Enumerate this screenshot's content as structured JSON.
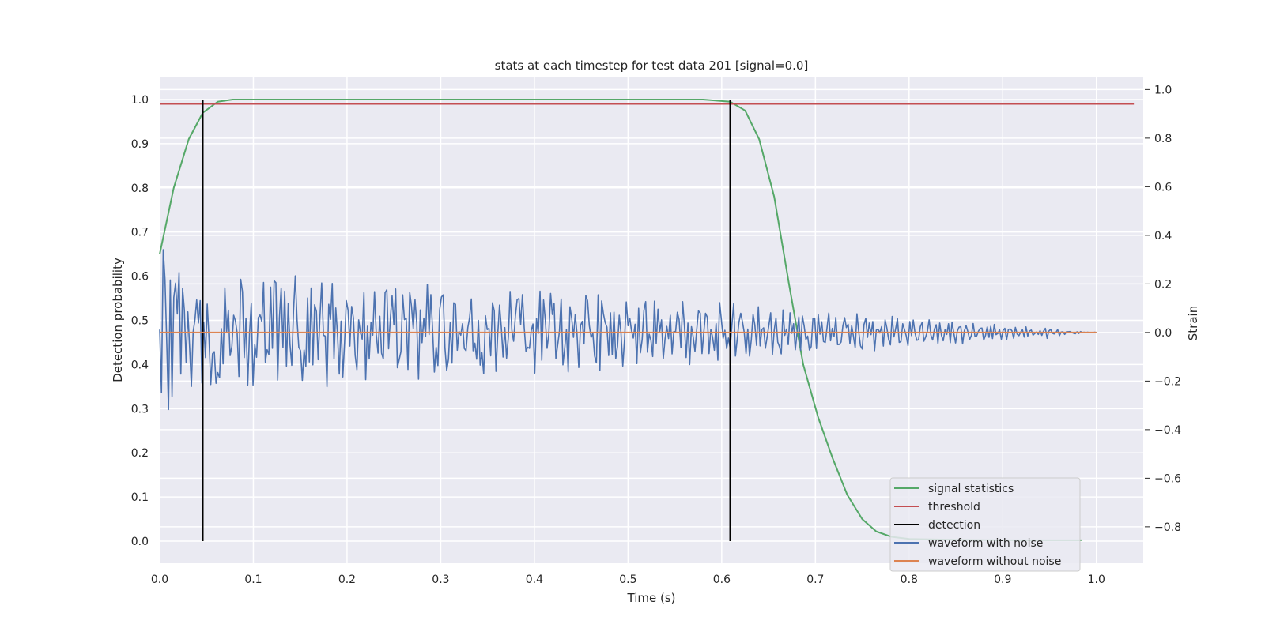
{
  "chart_data": {
    "type": "line",
    "title": "stats at each timestep for test data 201 [signal=0.0]",
    "xlabel": "Time (s)",
    "ylabel_left": "Detection probability",
    "ylabel_right": "Strain",
    "xlim": [
      0.0,
      1.05
    ],
    "ylim_left": [
      -0.05,
      1.05
    ],
    "ylim_right": [
      -0.95,
      1.05
    ],
    "x_ticks": [
      0.0,
      0.1,
      0.2,
      0.3,
      0.4,
      0.5,
      0.6,
      0.7,
      0.8,
      0.9,
      1.0
    ],
    "x_tick_labels": [
      "0.0",
      "0.1",
      "0.2",
      "0.3",
      "0.4",
      "0.5",
      "0.6",
      "0.7",
      "0.8",
      "0.9",
      "1.0"
    ],
    "y_left_ticks": [
      0.0,
      0.1,
      0.2,
      0.3,
      0.4,
      0.5,
      0.6,
      0.7,
      0.8,
      0.9,
      1.0
    ],
    "y_left_tick_labels": [
      "0.0",
      "0.1",
      "0.2",
      "0.3",
      "0.4",
      "0.5",
      "0.6",
      "0.7",
      "0.8",
      "0.9",
      "1.0"
    ],
    "y_right_ticks": [
      -0.8,
      -0.6,
      -0.4,
      -0.2,
      0.0,
      0.2,
      0.4,
      0.6,
      0.8,
      1.0
    ],
    "y_right_tick_labels": [
      "−0.8",
      "−0.6",
      "−0.4",
      "−0.2",
      "0.0",
      "0.2",
      "0.4",
      "0.6",
      "0.8",
      "1.0"
    ],
    "grid": true,
    "legend_position": "lower-right",
    "legend": [
      {
        "label": "signal statistics",
        "color": "#55a868"
      },
      {
        "label": "threshold",
        "color": "#c44e52"
      },
      {
        "label": "detection",
        "color": "#000000"
      },
      {
        "label": "waveform with noise",
        "color": "#4c72b0"
      },
      {
        "label": "waveform without noise",
        "color": "#dd8452"
      }
    ],
    "series": [
      {
        "name": "signal statistics",
        "axis": "left",
        "color": "#55a868",
        "x": [
          0.0,
          0.015,
          0.031,
          0.046,
          0.062,
          0.078,
          0.1,
          0.2,
          0.3,
          0.4,
          0.5,
          0.58,
          0.609,
          0.625,
          0.64,
          0.656,
          0.672,
          0.687,
          0.703,
          0.718,
          0.734,
          0.75,
          0.765,
          0.781,
          0.8,
          0.85,
          0.9,
          0.95,
          0.984
        ],
        "y": [
          0.65,
          0.8,
          0.91,
          0.97,
          0.995,
          1.0,
          1.0,
          1.0,
          1.0,
          1.0,
          1.0,
          1.0,
          0.995,
          0.975,
          0.91,
          0.78,
          0.58,
          0.4,
          0.28,
          0.19,
          0.105,
          0.05,
          0.022,
          0.01,
          0.005,
          0.003,
          0.002,
          0.002,
          0.002
        ]
      },
      {
        "name": "threshold",
        "axis": "left",
        "color": "#c44e52",
        "x": [
          0.0,
          1.04
        ],
        "y": [
          0.99,
          0.99
        ]
      },
      {
        "name": "waveform without noise",
        "axis": "right",
        "color": "#dd8452",
        "x": [
          0.0,
          1.0
        ],
        "y": [
          0.0,
          0.0
        ]
      }
    ],
    "detections": {
      "name": "detection",
      "color": "#000000",
      "x": [
        0.046,
        0.609
      ],
      "y_range": [
        0.0,
        1.0
      ]
    },
    "noisy_waveform": {
      "name": "waveform with noise",
      "axis": "right",
      "color": "#4c72b0",
      "x_start": 0.0,
      "x_end": 1.0,
      "y": [
        0.012,
        -0.248,
        0.341,
        0.218,
        -0.042,
        -0.317,
        0.216,
        -0.263,
        0.144,
        0.203,
        0.076,
        0.247,
        -0.171,
        0.181,
        0.093,
        -0.122,
        0.085,
        -0.062,
        -0.222,
        0.003,
        0.051,
        0.134,
        0.039,
        0.131,
        -0.208,
        0.041,
        -0.103,
        0.117,
        -0.024,
        -0.214,
        -0.088,
        -0.079,
        -0.209,
        -0.165,
        -0.186,
        0.016,
        -0.129,
        0.184,
        0.003,
        0.092,
        -0.095,
        -0.057,
        0.071,
        0.048,
        -0.003,
        -0.181,
        0.219,
        0.168,
        -0.103,
        0.059,
        -0.216,
        -0.006,
        0.119,
        -0.216,
        -0.05,
        -0.102,
        0.061,
        0.072,
        0.045,
        0.206,
        -0.122,
        -0.071,
        -0.09,
        0.187,
        -0.065,
        0.213,
        0.205,
        -0.196,
        0.061,
        0.183,
        -0.061,
        0.17,
        -0.138,
        0.12,
        -0.049,
        -0.135,
        0.088,
        0.233,
        0.054,
        -0.061,
        -0.075,
        -0.197,
        -0.072,
        -0.139,
        0.142,
        -0.121,
        0.183,
        -0.133,
        0.114,
        0.087,
        -0.112,
        0.062,
        0.204,
        -0.011,
        -0.015,
        -0.223,
        0.116,
        0.054,
        0.202,
        -0.109,
        0.101,
        -0.011,
        -0.171,
        0.047,
        -0.183,
        -0.041,
        0.131,
        0.091,
        -0.056,
        0.107,
        0.061,
        -0.093,
        -0.153,
        0.052,
        -0.001,
        -0.027,
        0.164,
        -0.194,
        0.026,
        -0.109,
        0.042,
        -0.011,
        0.168,
        -0.008,
        -0.085,
        0.067,
        -0.085,
        -0.109,
        0.164,
        0.176,
        -0.067,
        0.058,
        0.151,
        0.031,
        0.179,
        -0.145,
        -0.112,
        -0.079,
        0.155,
        0.053,
        0.058,
        -0.152,
        0.165,
        0.108,
        0.016,
        0.135,
        0.036,
        -0.192,
        0.093,
        -0.042,
        0.059,
        -0.017,
        0.198,
        -0.009,
        0.156,
        0.01,
        -0.163,
        -0.061,
        -0.136,
        0.093,
        0.146,
        0.155,
        -0.063,
        -0.157,
        -0.11,
        0.04,
        -0.126,
        0.122,
        0.116,
        -0.073,
        0.004,
        -0.011,
        0.036,
        -0.066,
        -0.075,
        0.02,
        0.061,
        0.138,
        -0.075,
        -0.044,
        -0.11,
        0.05,
        -0.134,
        -0.084,
        -0.17,
        0.069,
        0.012,
        0.017,
        -0.096,
        0.122,
        0.089,
        -0.16,
        -0.006,
        0.113,
        0.023,
        -0.101,
        0.02,
        -0.106,
        -0.02,
        0.169,
        0.009,
        -0.036,
        0.067,
        0.135,
        0.14,
        0.033,
        0.156,
        0.022,
        -0.077,
        -0.061,
        -0.065,
        0.008,
        0.035,
        -0.167,
        0.058,
        -0.004,
        0.17,
        -0.114,
        0.134,
        0.052,
        -0.065,
        -0.005,
        0.161,
        0.074,
        0.119,
        -0.107,
        -0.053,
        0.003,
        0.138,
        -0.133,
        -0.066,
        0.012,
        -0.162,
        0.106,
        0.058,
        -0.02,
        0.075,
        -0.005,
        -0.144,
        0.029,
        0.046,
        -0.047,
        0.152,
        0.131,
        0.028,
        -0.02,
        -0.003,
        -0.097,
        -0.125,
        0.155,
        -0.155,
        0.13,
        0.077,
        0.041,
        0.022,
        -0.095,
        0.081,
        -0.091,
        0.084,
        -0.108,
        -0.057,
        0.071,
        -0.004,
        -0.138,
        -0.029,
        0.126,
        0.028,
        0.058,
        0.005,
        -0.023,
        0.034,
        -0.128,
        0.1,
        -0.084,
        -0.03,
        0.09,
        0.127,
        -0.081,
        -0.007,
        -0.032,
        -0.099,
        0.129,
        -0.044,
        0.096,
        0.004,
        0.052,
        -0.108,
        -0.027,
        0.025,
        -0.025,
        0.071,
        -0.088,
        0.004,
        0.003,
        0.083,
        0.053,
        -0.063,
        0.127,
        0.029,
        -0.103,
        0.039,
        -0.132,
        0.024,
        -0.019,
        -0.078,
        0.011,
        0.089,
        0.08,
        -0.087,
        -0.001,
        0.079,
        0.063,
        -0.087,
        0.013,
        -0.019,
        -0.073,
        0.037,
        -0.114,
        0.123,
        0.052,
        -0.024,
        0.009,
        -0.066,
        -0.023,
        -0.065,
        0.033,
        0.12,
        -0.097,
        -0.027,
        0.043,
        0.079,
        0.043,
        -0.001,
        -0.087,
        0.014,
        -0.097,
        -0.03,
        0.075,
        0.031,
        -0.053,
        0.106,
        -0.055,
        0.012,
        0.019,
        -0.065,
        -0.018,
        0.031,
        0.081,
        -0.091,
        0.009,
        0.06,
        -0.039,
        -0.059,
        -0.088,
        0.093,
        -0.012,
        0.014,
        -0.05,
        0.081,
        -0.003,
        0.036,
        -0.071,
        0.001,
        0.064,
        -0.073,
        0.068,
        0.027,
        -0.029,
        -0.015,
        -0.072,
        -0.058,
        0.057,
        0.059,
        -0.066,
        0.075,
        -0.007,
        0.044,
        -0.037,
        -0.041,
        0.019,
        0.08,
        -0.034,
        0.017,
        -0.016,
        0.062,
        -0.05,
        -0.049,
        -0.039,
        0.027,
        0.061,
        0.02,
        0.034,
        -0.046,
        0.028,
        -0.016,
        -0.063,
        0.077,
        0.003,
        -0.055,
        -0.068,
        0.033,
        0.058,
        -0.02,
        0.039,
        -0.009,
        0.045,
        -0.075,
        0.01,
        0.014,
        -0.002,
        0.024,
        -0.056,
        0.052,
        0.018,
        -0.029,
        -0.051,
        0.066,
        -0.018,
        0.016,
        0.057,
        -0.041,
        -0.037,
        0.036,
        0.012,
        -0.014,
        -0.054,
        0.045,
        -0.013,
        0.051,
        -0.003,
        -0.032,
        -0.03,
        0.024,
        0.041,
        -0.036,
        -0.019,
        0.005,
        0.052,
        -0.011,
        -0.031,
        0.014,
        0.032,
        -0.045,
        0.039,
        -0.012,
        -0.034,
        0.011,
        -0.008,
        0.036,
        -0.042,
        0.043,
        -0.002,
        -0.043,
        0.005,
        0.022,
        0.024,
        -0.047,
        0.007,
        0.028,
        0.003,
        -0.029,
        -0.012,
        0.037,
        -0.015,
        -0.014,
        0.005,
        0.017,
        0.018,
        -0.031,
        -0.012,
        0.023,
        -0.02,
        0.025,
        -0.025,
        0.033,
        -0.009,
        -0.004,
        0.011,
        -0.028,
        0.009,
        0.017,
        -0.03,
        0.012,
        0.015,
        0.007,
        -0.024,
        0.021,
        -0.007,
        -0.013,
        0.002,
        0.011,
        -0.019,
        0.023,
        -0.015,
        0.006,
        0.01,
        -0.011,
        -0.004,
        0.002,
        -0.008,
        0.008,
        -0.012,
        0.006,
        0.017,
        -0.024,
        0.006,
        0.013,
        -0.003,
        -0.006,
        0.0,
        0.012,
        -0.013,
        0.002,
        0.003,
        -0.008,
        0.003,
        0.003,
        0.004,
        0.0,
        -0.003,
        -0.005,
        0.003,
        -0.004,
        0.004,
        0.0,
        0.001,
        -0.001,
        0.001,
        0.0,
        0.0,
        -0.001,
        0.001,
        0.0
      ]
    }
  }
}
